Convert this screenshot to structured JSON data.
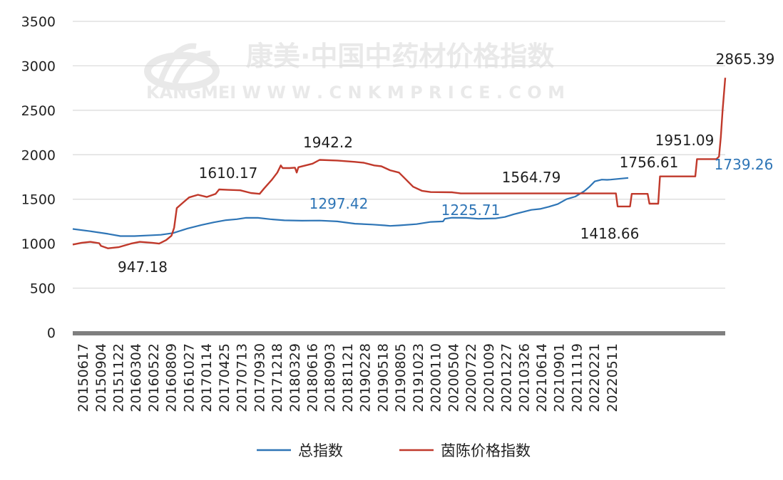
{
  "chart_data": {
    "type": "line",
    "title": "",
    "xlabel": "",
    "ylabel": "",
    "ylim": [
      0,
      3500
    ],
    "yticks": [
      0,
      500,
      1000,
      1500,
      2000,
      2500,
      3000,
      3500
    ],
    "xtick_labels": [
      "20150617",
      "20150904",
      "20151122",
      "20160304",
      "20160522",
      "20160809",
      "20161027",
      "20170114",
      "20170425",
      "20170713",
      "20170930",
      "20171218",
      "20180329",
      "20180616",
      "20180903",
      "20181121",
      "20190228",
      "20190518",
      "20190805",
      "20191023",
      "20200110",
      "20200504",
      "20200722",
      "20201009",
      "20201227",
      "20210326",
      "20210614",
      "20210901",
      "20211119",
      "20220221",
      "20220511"
    ],
    "grid": "horizontal",
    "legend_position": "bottom",
    "watermark": {
      "brand": "康美·中国中药材价格指数",
      "site": "KANGMEI  W W W . C N K M P R I C E . C O M"
    },
    "series": [
      {
        "name": "总指数",
        "color": "#2e75b6",
        "points": [
          [
            0,
            1165
          ],
          [
            1,
            1140
          ],
          [
            2,
            1110
          ],
          [
            2.7,
            1085
          ],
          [
            3.5,
            1085
          ],
          [
            4.5,
            1095
          ],
          [
            5,
            1100
          ],
          [
            5.7,
            1120
          ],
          [
            6.5,
            1170
          ],
          [
            7.3,
            1210
          ],
          [
            8,
            1240
          ],
          [
            8.7,
            1265
          ],
          [
            9.3,
            1275
          ],
          [
            9.8,
            1290
          ],
          [
            10.5,
            1290
          ],
          [
            11.2,
            1275
          ],
          [
            12,
            1262
          ],
          [
            13,
            1258
          ],
          [
            14,
            1260
          ],
          [
            15,
            1250
          ],
          [
            16,
            1225
          ],
          [
            17,
            1215
          ],
          [
            17.7,
            1205
          ],
          [
            18,
            1200
          ],
          [
            18.5,
            1205
          ],
          [
            19.5,
            1220
          ],
          [
            20.3,
            1245
          ],
          [
            21,
            1250
          ],
          [
            21.1,
            1280
          ],
          [
            21.5,
            1292
          ],
          [
            22.3,
            1290
          ],
          [
            23,
            1280
          ],
          [
            24,
            1285
          ],
          [
            24.5,
            1300
          ],
          [
            25,
            1330
          ],
          [
            25.5,
            1355
          ],
          [
            26,
            1380
          ],
          [
            26.5,
            1390
          ],
          [
            27,
            1415
          ],
          [
            27.5,
            1445
          ],
          [
            28,
            1500
          ],
          [
            28.5,
            1530
          ],
          [
            29,
            1590
          ],
          [
            29.3,
            1640
          ],
          [
            29.6,
            1700
          ],
          [
            30,
            1720
          ],
          [
            30.3,
            1718
          ],
          [
            30.5,
            1720
          ],
          [
            31.5,
            1739.26
          ]
        ]
      },
      {
        "name": "茵陈价格指数",
        "color": "#c0392b",
        "points": [
          [
            0,
            990
          ],
          [
            0.5,
            1010
          ],
          [
            1,
            1020
          ],
          [
            1.5,
            1005
          ],
          [
            1.6,
            975
          ],
          [
            2,
            947.18
          ],
          [
            2.6,
            960
          ],
          [
            3.3,
            1000
          ],
          [
            3.8,
            1020
          ],
          [
            4.5,
            1010
          ],
          [
            4.9,
            1000
          ],
          [
            5.3,
            1040
          ],
          [
            5.6,
            1090
          ],
          [
            5.75,
            1180
          ],
          [
            5.9,
            1400
          ],
          [
            6.3,
            1470
          ],
          [
            6.6,
            1520
          ],
          [
            7.1,
            1550
          ],
          [
            7.6,
            1525
          ],
          [
            8.1,
            1560
          ],
          [
            8.3,
            1610.17
          ],
          [
            8.8,
            1605
          ],
          [
            9.5,
            1600
          ],
          [
            10.1,
            1570
          ],
          [
            10.6,
            1560
          ],
          [
            10.85,
            1620
          ],
          [
            11.3,
            1720
          ],
          [
            11.6,
            1800
          ],
          [
            11.8,
            1880
          ],
          [
            11.9,
            1850
          ],
          [
            12.3,
            1850
          ],
          [
            12.6,
            1855
          ],
          [
            12.7,
            1800
          ],
          [
            12.8,
            1860
          ],
          [
            13.2,
            1880
          ],
          [
            13.6,
            1900
          ],
          [
            14,
            1942.2
          ],
          [
            15,
            1935
          ],
          [
            16,
            1920
          ],
          [
            16.5,
            1910
          ],
          [
            17.1,
            1880
          ],
          [
            17.5,
            1870
          ],
          [
            18,
            1825
          ],
          [
            18.5,
            1800
          ],
          [
            18.9,
            1720
          ],
          [
            19.3,
            1640
          ],
          [
            19.8,
            1595
          ],
          [
            20.3,
            1580
          ],
          [
            21.5,
            1578
          ],
          [
            22,
            1564.79
          ],
          [
            30,
            1564.79
          ],
          [
            30.8,
            1564.79
          ],
          [
            30.9,
            1418.66
          ],
          [
            31.6,
            1418.66
          ],
          [
            31.7,
            1560
          ],
          [
            32.6,
            1560
          ],
          [
            32.7,
            1450
          ],
          [
            33.2,
            1450
          ],
          [
            33.3,
            1756.61
          ],
          [
            35.3,
            1756.61
          ],
          [
            35.4,
            1951.09
          ],
          [
            36.5,
            1951.09
          ],
          [
            36.65,
            1980
          ],
          [
            36.75,
            2200
          ],
          [
            36.85,
            2500
          ],
          [
            37,
            2865.39
          ]
        ]
      }
    ],
    "annotations": [
      {
        "text": "947.18",
        "series": 1
      },
      {
        "text": "1610.17",
        "series": 1
      },
      {
        "text": "1942.2",
        "series": 1
      },
      {
        "text": "1297.42",
        "series": 0
      },
      {
        "text": "1225.71",
        "series": 0
      },
      {
        "text": "1564.79",
        "series": 1
      },
      {
        "text": "1418.66",
        "series": 1
      },
      {
        "text": "1756.61",
        "series": 1
      },
      {
        "text": "1951.09",
        "series": 1
      },
      {
        "text": "1739.26",
        "series": 0
      },
      {
        "text": "2865.39",
        "series": 1
      }
    ],
    "legend": [
      {
        "name": "总指数",
        "color": "#2e75b6"
      },
      {
        "name": "茵陈价格指数",
        "color": "#c0392b"
      }
    ]
  }
}
